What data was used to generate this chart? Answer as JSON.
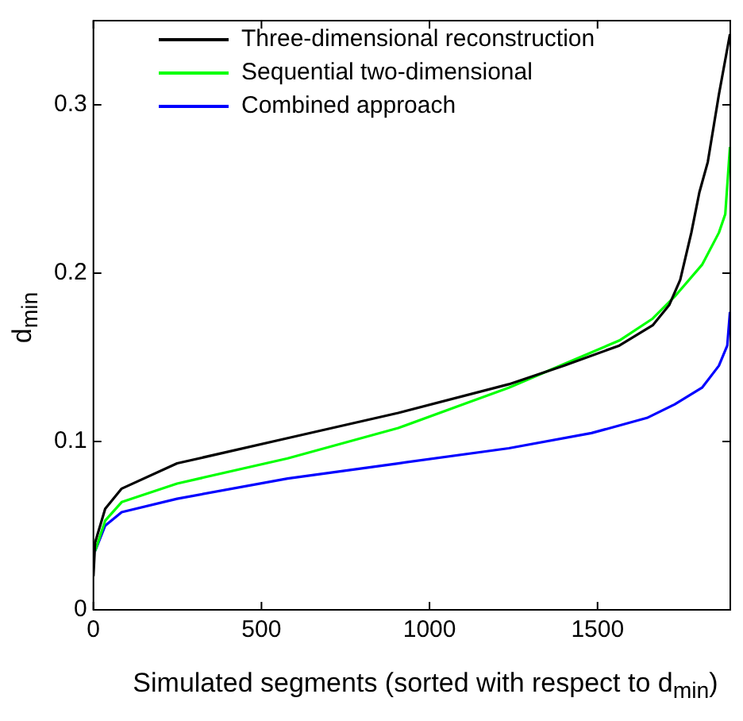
{
  "chart_data": {
    "type": "line",
    "xlabel": "Simulated segments (sorted with respect to d$_{min}$)",
    "ylabel": "d$_{min}$",
    "xlim": [
      0,
      1895
    ],
    "ylim": [
      0,
      0.35
    ],
    "xticks": [
      0,
      500,
      1000,
      1500
    ],
    "yticks": [
      0,
      0.1,
      0.2,
      0.3
    ],
    "grid": false,
    "legend": "top left",
    "marker": "none",
    "line_style": "solid",
    "series": [
      {
        "name": "Three-dimensional reconstruction",
        "color": "#000000",
        "x": [
          0,
          5,
          35,
          84,
          249,
          578,
          907,
          1236,
          1400,
          1565,
          1664,
          1713,
          1746,
          1779,
          1803,
          1828,
          1861,
          1894
        ],
        "values": [
          0.02,
          0.04,
          0.06,
          0.072,
          0.087,
          0.102,
          0.117,
          0.134,
          0.145,
          0.157,
          0.169,
          0.181,
          0.196,
          0.224,
          0.248,
          0.266,
          0.306,
          0.342
        ]
      },
      {
        "name": "Sequential two-dimensional",
        "color": "#00ff00",
        "x": [
          5,
          35,
          84,
          249,
          578,
          907,
          1236,
          1400,
          1565,
          1664,
          1729,
          1811,
          1861,
          1880,
          1894
        ],
        "values": [
          0.035,
          0.053,
          0.064,
          0.075,
          0.09,
          0.108,
          0.132,
          0.146,
          0.16,
          0.173,
          0.186,
          0.205,
          0.224,
          0.235,
          0.275
        ]
      },
      {
        "name": "Combined approach",
        "color": "#0000ff",
        "x": [
          5,
          35,
          84,
          249,
          578,
          907,
          1236,
          1482,
          1647,
          1729,
          1811,
          1861,
          1886,
          1894
        ],
        "values": [
          0.035,
          0.05,
          0.058,
          0.066,
          0.078,
          0.087,
          0.096,
          0.105,
          0.114,
          0.122,
          0.132,
          0.145,
          0.157,
          0.177
        ]
      }
    ]
  }
}
